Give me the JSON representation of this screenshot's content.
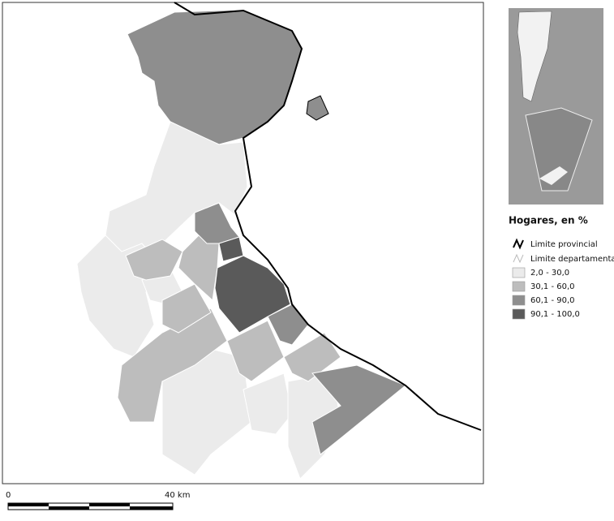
{
  "legend": {
    "title": "Hogares, en %",
    "lines": [
      {
        "label": "Limite provincial"
      },
      {
        "label": "Limite departamental"
      }
    ],
    "classes": [
      {
        "label": "2,0 - 30,0",
        "color": "#ebebeb"
      },
      {
        "label": "30,1 - 60,0",
        "color": "#bdbdbd"
      },
      {
        "label": "60,1 - 90,0",
        "color": "#8e8e8e"
      },
      {
        "label": "90,1 - 100,0",
        "color": "#5a5a5a"
      }
    ]
  },
  "scale_bar": {
    "labels": [
      "0",
      "40 km"
    ]
  }
}
